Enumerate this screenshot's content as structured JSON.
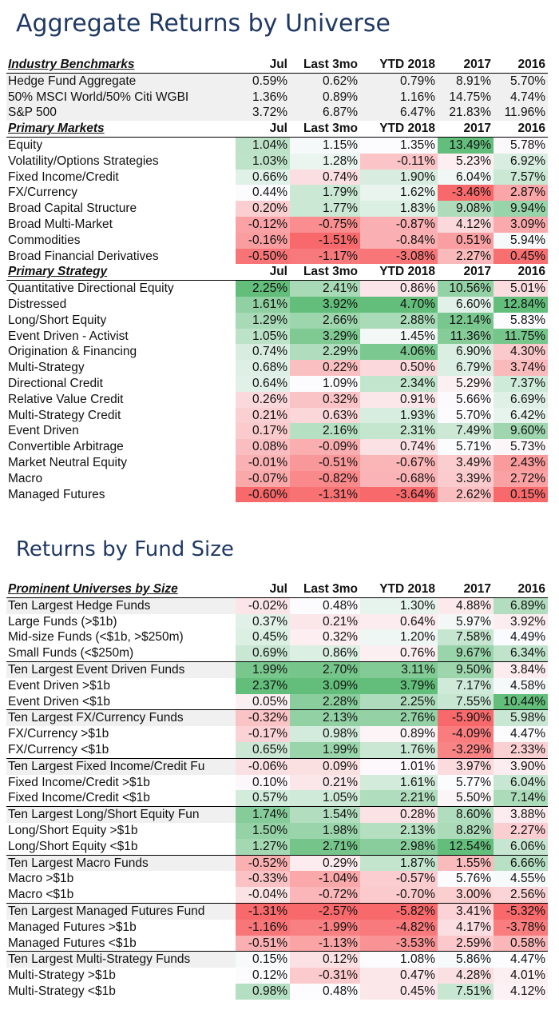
{
  "title1": "Aggregate Returns by Universe",
  "title2": "Returns by Fund Size",
  "columns": [
    "Jul",
    "Last 3mo",
    "YTD 2018",
    "2017",
    "2016"
  ],
  "table1": {
    "sections": [
      {
        "header": "Industry Benchmarks",
        "colored": false,
        "rows": [
          {
            "label": "Hedge Fund Aggregate",
            "values": [
              "0.59%",
              "0.62%",
              "0.79%",
              "8.91%",
              "5.70%"
            ]
          },
          {
            "label": "50% MSCI World/50% Citi WGBI",
            "values": [
              "1.36%",
              "0.89%",
              "1.16%",
              "14.75%",
              "4.74%"
            ]
          },
          {
            "label": "S&P 500",
            "values": [
              "3.72%",
              "6.87%",
              "6.47%",
              "21.83%",
              "11.96%"
            ]
          }
        ]
      },
      {
        "header": "Primary Markets",
        "colored": true,
        "rows": [
          {
            "label": "Equity",
            "values": [
              "1.04%",
              "1.15%",
              "1.35%",
              "13.49%",
              "5.78%"
            ]
          },
          {
            "label": "Volatility/Options Strategies",
            "values": [
              "1.03%",
              "1.28%",
              "-0.11%",
              "5.23%",
              "6.92%"
            ]
          },
          {
            "label": "Fixed Income/Credit",
            "values": [
              "0.66%",
              "0.74%",
              "1.90%",
              "6.04%",
              "7.57%"
            ]
          },
          {
            "label": "FX/Currency",
            "values": [
              "0.44%",
              "1.79%",
              "1.62%",
              "-3.46%",
              "2.87%"
            ]
          },
          {
            "label": "Broad Capital Structure",
            "values": [
              "0.20%",
              "1.77%",
              "1.83%",
              "9.08%",
              "9.94%"
            ]
          },
          {
            "label": "Broad Multi-Market",
            "values": [
              "-0.12%",
              "-0.75%",
              "-0.87%",
              "4.12%",
              "3.09%"
            ]
          },
          {
            "label": "Commodities",
            "values": [
              "-0.16%",
              "-1.51%",
              "-0.84%",
              "0.51%",
              "5.94%"
            ]
          },
          {
            "label": "Broad Financial Derivatives",
            "values": [
              "-0.50%",
              "-1.17%",
              "-3.08%",
              "2.27%",
              "0.45%"
            ]
          }
        ]
      },
      {
        "header": "Primary Strategy",
        "colored": true,
        "rows": [
          {
            "label": "Quantitative Directional Equity",
            "values": [
              "2.25%",
              "2.41%",
              "0.86%",
              "10.56%",
              "5.01%"
            ]
          },
          {
            "label": "Distressed",
            "values": [
              "1.61%",
              "3.92%",
              "4.70%",
              "6.60%",
              "12.84%"
            ]
          },
          {
            "label": "Long/Short Equity",
            "values": [
              "1.29%",
              "2.66%",
              "2.88%",
              "12.14%",
              "5.83%"
            ]
          },
          {
            "label": "Event Driven - Activist",
            "values": [
              "1.05%",
              "3.29%",
              "1.45%",
              "11.36%",
              "11.75%"
            ]
          },
          {
            "label": "Origination & Financing",
            "values": [
              "0.74%",
              "2.29%",
              "4.06%",
              "6.90%",
              "4.30%"
            ]
          },
          {
            "label": "Multi-Strategy",
            "values": [
              "0.68%",
              "0.22%",
              "0.50%",
              "6.79%",
              "3.74%"
            ]
          },
          {
            "label": "Directional Credit",
            "values": [
              "0.64%",
              "1.09%",
              "2.34%",
              "5.29%",
              "7.37%"
            ]
          },
          {
            "label": "Relative Value Credit",
            "values": [
              "0.26%",
              "0.32%",
              "0.91%",
              "5.66%",
              "6.69%"
            ]
          },
          {
            "label": "Multi-Strategy Credit",
            "values": [
              "0.21%",
              "0.63%",
              "1.93%",
              "5.70%",
              "6.42%"
            ]
          },
          {
            "label": "Event Driven",
            "values": [
              "0.17%",
              "2.16%",
              "2.31%",
              "7.49%",
              "9.60%"
            ]
          },
          {
            "label": "Convertible Arbitrage",
            "values": [
              "0.08%",
              "-0.09%",
              "0.74%",
              "5.71%",
              "5.73%"
            ]
          },
          {
            "label": "Market Neutral Equity",
            "values": [
              "-0.01%",
              "-0.51%",
              "-0.67%",
              "3.49%",
              "2.43%"
            ]
          },
          {
            "label": "Macro",
            "values": [
              "-0.07%",
              "-0.82%",
              "-0.68%",
              "3.39%",
              "2.72%"
            ]
          },
          {
            "label": "Managed Futures",
            "values": [
              "-0.60%",
              "-1.31%",
              "-3.64%",
              "2.62%",
              "0.15%"
            ]
          }
        ]
      }
    ]
  },
  "table2": {
    "header": "Prominent Universes by Size",
    "rows": [
      {
        "label": "Ten Largest Hedge Funds",
        "values": [
          "-0.02%",
          "0.48%",
          "1.30%",
          "4.88%",
          "6.89%"
        ],
        "group": true
      },
      {
        "label": "Large Funds (>$1b)",
        "values": [
          "0.37%",
          "0.21%",
          "0.64%",
          "5.97%",
          "3.92%"
        ]
      },
      {
        "label": "Mid-size Funds (<$1b, >$250m)",
        "values": [
          "0.45%",
          "0.32%",
          "1.20%",
          "7.58%",
          "4.49%"
        ]
      },
      {
        "label": "Small Funds (<$250m)",
        "values": [
          "0.69%",
          "0.86%",
          "0.76%",
          "9.67%",
          "6.34%"
        ]
      },
      {
        "label": "Ten Largest Event Driven Funds",
        "values": [
          "1.99%",
          "2.70%",
          "3.11%",
          "9.50%",
          "3.84%"
        ],
        "group": true
      },
      {
        "label": "Event Driven >$1b",
        "values": [
          "2.37%",
          "3.09%",
          "3.79%",
          "7.17%",
          "4.58%"
        ]
      },
      {
        "label": "Event Driven <$1b",
        "values": [
          "0.05%",
          "2.28%",
          "2.25%",
          "7.55%",
          "10.44%"
        ]
      },
      {
        "label": "Ten Largest FX/Currency Funds",
        "values": [
          "-0.32%",
          "2.13%",
          "2.76%",
          "-5.90%",
          "5.98%"
        ],
        "group": true
      },
      {
        "label": "FX/Currency >$1b",
        "values": [
          "-0.17%",
          "0.98%",
          "0.89%",
          "-4.09%",
          "4.47%"
        ]
      },
      {
        "label": "FX/Currency <$1b",
        "values": [
          "0.65%",
          "1.99%",
          "1.76%",
          "-3.29%",
          "2.33%"
        ]
      },
      {
        "label": "Ten Largest Fixed Income/Credit Fu",
        "values": [
          "-0.06%",
          "0.09%",
          "1.01%",
          "3.97%",
          "3.90%"
        ],
        "group": true
      },
      {
        "label": "Fixed Income/Credit >$1b",
        "values": [
          "0.10%",
          "0.21%",
          "1.61%",
          "5.77%",
          "6.04%"
        ]
      },
      {
        "label": "Fixed Income/Credit <$1b",
        "values": [
          "0.57%",
          "1.05%",
          "2.21%",
          "5.50%",
          "7.14%"
        ]
      },
      {
        "label": "Ten Largest Long/Short Equity Fun",
        "values": [
          "1.74%",
          "1.54%",
          "0.28%",
          "8.60%",
          "3.88%"
        ],
        "group": true
      },
      {
        "label": "Long/Short Equity >$1b",
        "values": [
          "1.50%",
          "1.98%",
          "2.13%",
          "8.82%",
          "2.27%"
        ]
      },
      {
        "label": "Long/Short Equity <$1b",
        "values": [
          "1.27%",
          "2.71%",
          "2.98%",
          "12.54%",
          "6.06%"
        ]
      },
      {
        "label": "Ten Largest Macro Funds",
        "values": [
          "-0.52%",
          "0.29%",
          "1.87%",
          "1.55%",
          "6.66%"
        ],
        "group": true
      },
      {
        "label": "Macro >$1b",
        "values": [
          "-0.33%",
          "-1.04%",
          "-0.57%",
          "5.76%",
          "4.55%"
        ]
      },
      {
        "label": "Macro <$1b",
        "values": [
          "-0.04%",
          "-0.72%",
          "-0.70%",
          "3.00%",
          "2.56%"
        ]
      },
      {
        "label": "Ten Largest Managed Futures Fund",
        "values": [
          "-1.31%",
          "-2.57%",
          "-5.82%",
          "3.41%",
          "-5.32%"
        ],
        "group": true
      },
      {
        "label": "Managed Futures >$1b",
        "values": [
          "-1.16%",
          "-1.99%",
          "-4.82%",
          "4.17%",
          "-3.78%"
        ]
      },
      {
        "label": "Managed Futures <$1b",
        "values": [
          "-0.51%",
          "-1.13%",
          "-3.53%",
          "2.59%",
          "0.58%"
        ]
      },
      {
        "label": "Ten Largest Multi-Strategy Funds",
        "values": [
          "0.15%",
          "0.12%",
          "1.08%",
          "5.86%",
          "4.47%"
        ],
        "group": true
      },
      {
        "label": "Multi-Strategy >$1b",
        "values": [
          "0.12%",
          "-0.31%",
          "0.47%",
          "4.28%",
          "4.01%"
        ]
      },
      {
        "label": "Multi-Strategy <$1b",
        "values": [
          "0.98%",
          "0.48%",
          "0.45%",
          "7.51%",
          "4.12%"
        ]
      }
    ]
  },
  "colors": {
    "title": "#1f3864",
    "strong_green": "#63be7b",
    "strong_red": "#f8696b",
    "neutral": "#fcfcff",
    "label_band": "#f0f0f0"
  }
}
